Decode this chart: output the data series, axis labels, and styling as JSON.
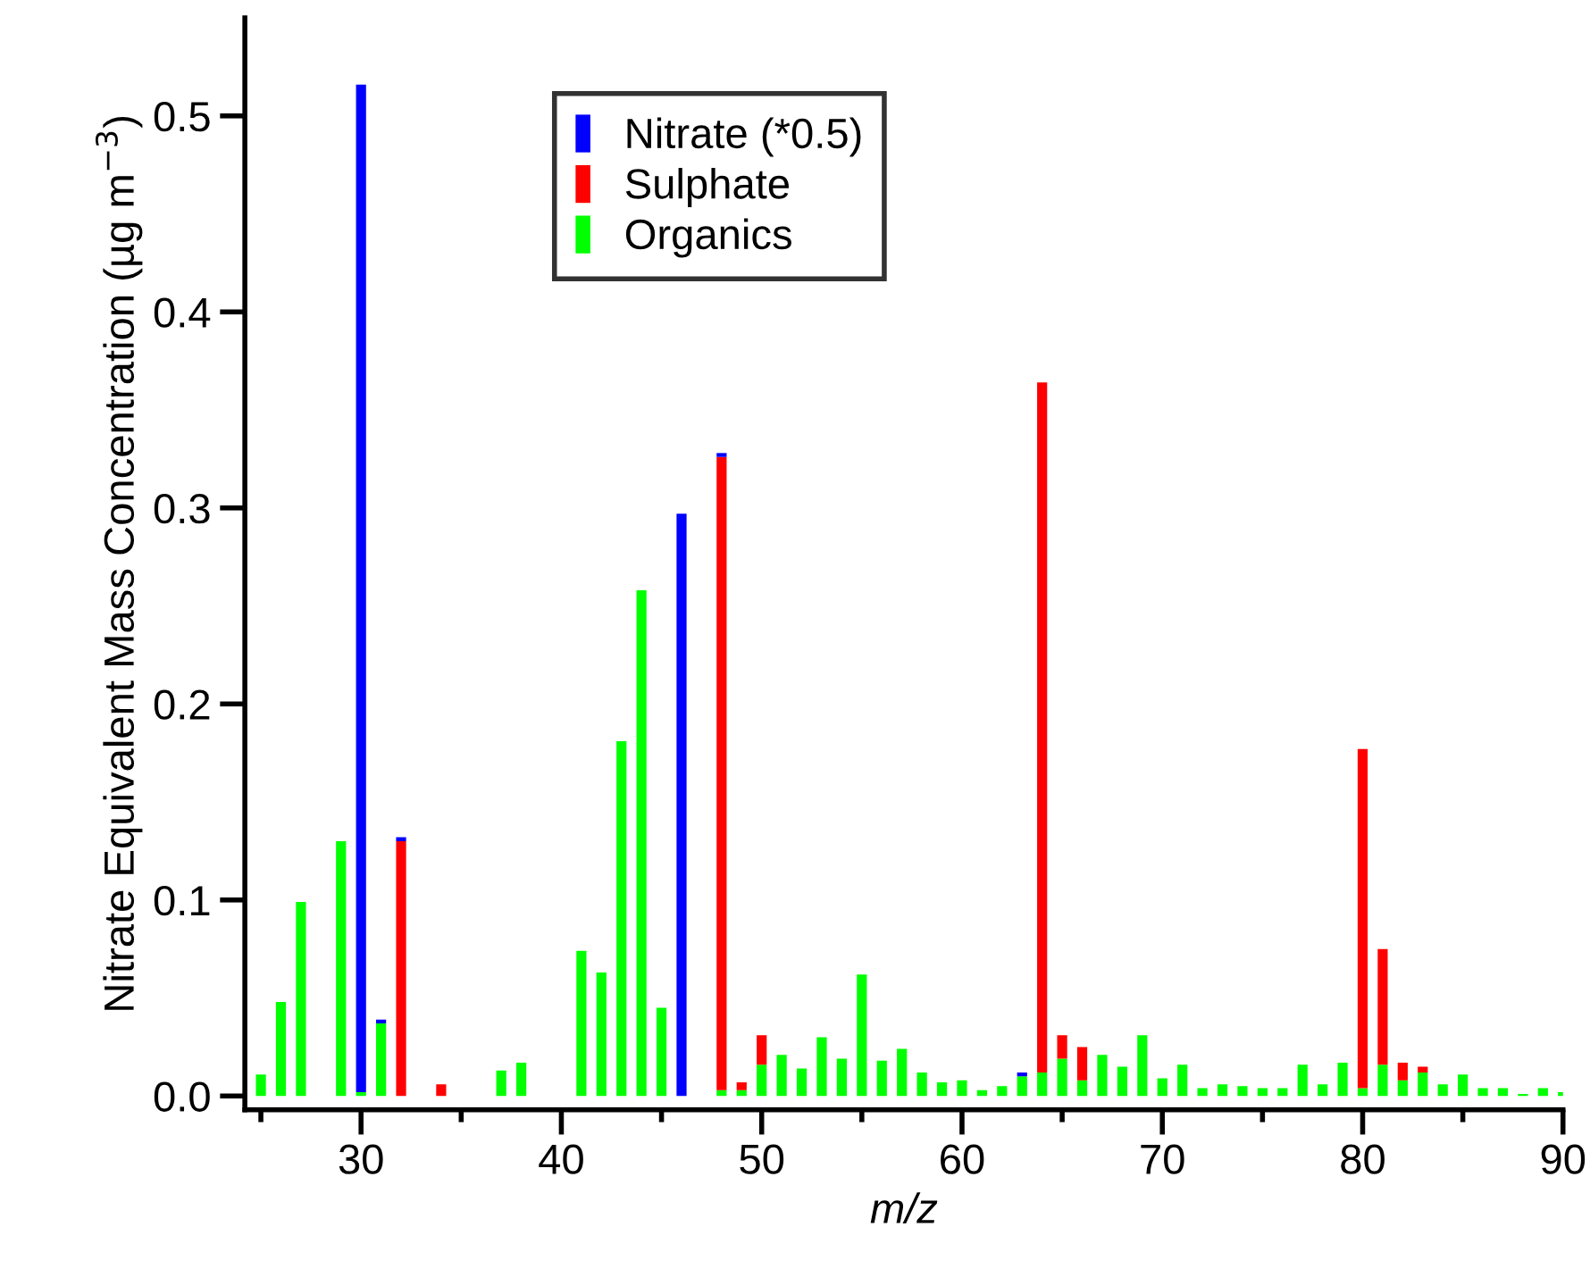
{
  "chart_data": {
    "type": "bar",
    "stacked": true,
    "xlabel": "m/z",
    "ylabel": "Nitrate Equivalent Mass Concentration (µg m$^{−3}$)",
    "x": [
      25,
      26,
      27,
      28,
      29,
      30,
      31,
      32,
      33,
      34,
      35,
      36,
      37,
      38,
      39,
      40,
      41,
      42,
      43,
      44,
      45,
      46,
      47,
      48,
      49,
      50,
      51,
      52,
      53,
      54,
      55,
      56,
      57,
      58,
      59,
      60,
      61,
      62,
      63,
      64,
      65,
      66,
      67,
      68,
      69,
      70,
      71,
      72,
      73,
      74,
      75,
      76,
      77,
      78,
      79,
      80,
      81,
      82,
      83,
      84,
      85,
      86,
      87,
      88,
      89,
      90
    ],
    "series": [
      {
        "name": "Organics",
        "color": "#00ff00",
        "values": [
          0.011,
          0.048,
          0.099,
          0,
          0.13,
          0.002,
          0.037,
          0,
          0,
          0,
          0,
          0,
          0.013,
          0.017,
          0,
          0,
          0.074,
          0.063,
          0.181,
          0.258,
          0.045,
          0,
          0,
          0.003,
          0.003,
          0.016,
          0.021,
          0.014,
          0.03,
          0.019,
          0.062,
          0.018,
          0.024,
          0.012,
          0.007,
          0.008,
          0.003,
          0.005,
          0.01,
          0.012,
          0.019,
          0.008,
          0.021,
          0.015,
          0.031,
          0.009,
          0.016,
          0.004,
          0.006,
          0.005,
          0.004,
          0.004,
          0.016,
          0.006,
          0.017,
          0.004,
          0.016,
          0.008,
          0.012,
          0.006,
          0.011,
          0.004,
          0.004,
          0.001,
          0.004,
          0.002
        ]
      },
      {
        "name": "Sulphate",
        "color": "#ff0000",
        "values": [
          0,
          0,
          0,
          0,
          0,
          0,
          0,
          0.13,
          0,
          0.006,
          0,
          0,
          0,
          0,
          0,
          0,
          0,
          0,
          0,
          0,
          0,
          0,
          0,
          0.323,
          0.004,
          0.015,
          0,
          0,
          0,
          0,
          0,
          0,
          0,
          0,
          0,
          0,
          0,
          0,
          0,
          0.352,
          0.012,
          0.017,
          0,
          0,
          0,
          0,
          0,
          0,
          0,
          0,
          0,
          0,
          0,
          0,
          0,
          0.173,
          0.059,
          0.009,
          0.003,
          0,
          0,
          0,
          0,
          0,
          0,
          0
        ]
      },
      {
        "name": "Nitrate (*0.5)",
        "color": "#0000ff",
        "values": [
          0,
          0,
          0,
          0,
          0,
          0.514,
          0.002,
          0.002,
          0,
          0,
          0,
          0,
          0,
          0,
          0,
          0,
          0,
          0,
          0,
          0,
          0,
          0.297,
          0,
          0.002,
          0,
          0,
          0,
          0,
          0,
          0,
          0,
          0,
          0,
          0,
          0,
          0,
          0,
          0,
          0.002,
          0,
          0,
          0,
          0,
          0,
          0,
          0,
          0,
          0,
          0,
          0,
          0,
          0,
          0,
          0,
          0,
          0,
          0,
          0,
          0,
          0,
          0,
          0,
          0,
          0,
          0,
          0
        ]
      }
    ],
    "xlim": [
      24.2,
      90
    ],
    "ylim": [
      -0.007,
      0.55
    ],
    "xticks": [
      {
        "value": 25,
        "label": null
      },
      30,
      {
        "value": 35,
        "label": null
      },
      40,
      {
        "value": 45,
        "label": null
      },
      50,
      {
        "value": 55,
        "label": null
      },
      60,
      {
        "value": 65,
        "label": null
      },
      70,
      {
        "value": 75,
        "label": null
      },
      80,
      {
        "value": 85,
        "label": null
      },
      90
    ],
    "yticks": [
      {
        "value": 0,
        "label": "0.0"
      },
      0.1,
      0.2,
      0.3,
      0.4,
      0.5
    ],
    "legend": "top",
    "grid": false
  }
}
